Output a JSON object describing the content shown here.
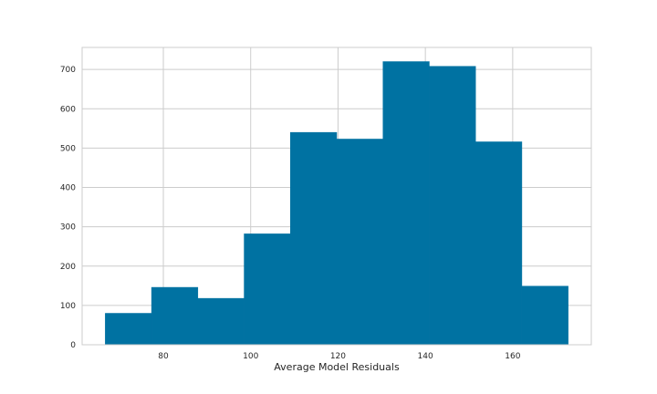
{
  "chart_data": {
    "type": "bar",
    "title": "",
    "xlabel": "Average Model Residuals",
    "ylabel": "",
    "bins": [
      {
        "x0": 66.7,
        "x1": 77.3,
        "count": 80
      },
      {
        "x0": 77.3,
        "x1": 87.9,
        "count": 146
      },
      {
        "x0": 87.9,
        "x1": 98.5,
        "count": 118
      },
      {
        "x0": 98.5,
        "x1": 109.1,
        "count": 282
      },
      {
        "x0": 109.1,
        "x1": 119.7,
        "count": 540
      },
      {
        "x0": 119.7,
        "x1": 130.3,
        "count": 523
      },
      {
        "x0": 130.3,
        "x1": 140.9,
        "count": 720
      },
      {
        "x0": 140.9,
        "x1": 151.5,
        "count": 708
      },
      {
        "x0": 151.5,
        "x1": 162.1,
        "count": 516
      },
      {
        "x0": 162.1,
        "x1": 172.7,
        "count": 149
      }
    ],
    "xlim": [
      61.4,
      178.0
    ],
    "ylim": [
      0,
      756
    ],
    "xticks": [
      80,
      100,
      120,
      140,
      160
    ],
    "xtick_labels": [
      "80",
      "100",
      "120",
      "140",
      "160"
    ],
    "yticks": [
      0,
      100,
      200,
      300,
      400,
      500,
      600,
      700
    ],
    "ytick_labels": [
      "0",
      "100",
      "200",
      "300",
      "400",
      "500",
      "600",
      "700"
    ],
    "grid": true,
    "bar_color": "#0072a2",
    "grid_color": "#cccccc"
  }
}
